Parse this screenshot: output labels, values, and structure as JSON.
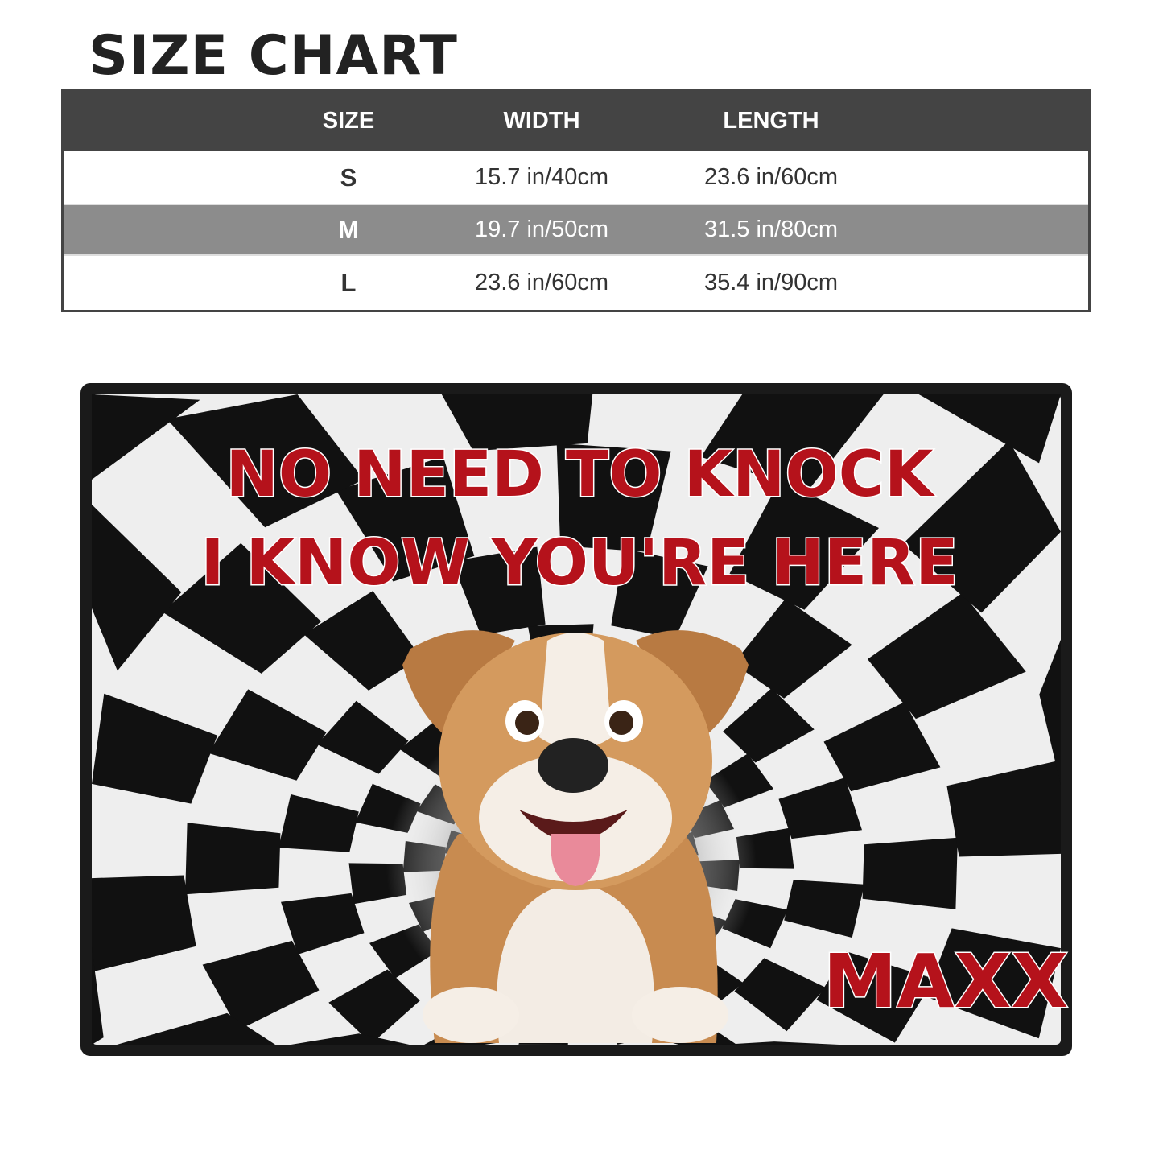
{
  "title": "SIZE CHART",
  "table": {
    "headers": [
      "SIZE",
      "WIDTH",
      "LENGTH"
    ],
    "rows": [
      [
        "S",
        "15.7 in/40cm",
        "23.6 in/60cm"
      ],
      [
        "M",
        "19.7 in/50cm",
        "31.5 in/80cm"
      ],
      [
        "L",
        "23.6 in/60cm",
        "35.4 in/90cm"
      ]
    ]
  },
  "mat": {
    "line1": "NO NEED TO KNOCK",
    "line2": "I KNOW YOU'RE HERE",
    "name": "MAXX",
    "text_color": "#b5121b"
  }
}
